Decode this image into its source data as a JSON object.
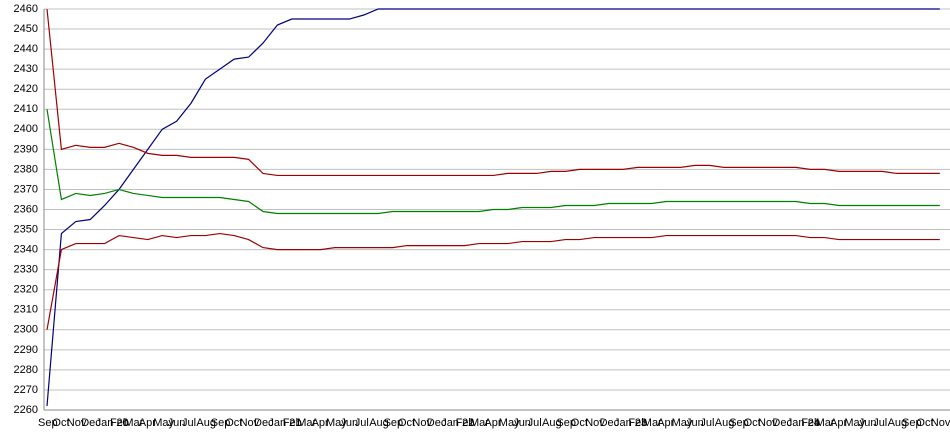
{
  "chart_data": {
    "type": "line",
    "categories": [
      "Sep",
      "Oct",
      "Nov",
      "Dec",
      "Jan 20",
      "Feb",
      "Mar",
      "Apr",
      "May",
      "Jun",
      "Jul",
      "Aug",
      "Sep",
      "Oct",
      "Nov",
      "Dec",
      "Jan 21",
      "Feb",
      "Mar",
      "Apr",
      "May",
      "Jun",
      "Jul",
      "Aug",
      "Sep",
      "Oct",
      "Nov",
      "Dec",
      "Jan 22",
      "Feb",
      "Mar",
      "Apr",
      "May",
      "Jun",
      "Jul",
      "Aug",
      "Sep",
      "Oct",
      "Nov",
      "Dec",
      "Jan 23",
      "Feb",
      "Mar",
      "Apr",
      "May",
      "Jun",
      "Jul",
      "Aug",
      "Sep",
      "Oct",
      "Nov",
      "Dec",
      "Jan 24",
      "Feb",
      "Mar",
      "Apr",
      "May",
      "Jun",
      "Jul",
      "Aug",
      "Sep",
      "Oct",
      "Nov"
    ],
    "series": [
      {
        "color": "#000080",
        "values": [
          2262,
          2348,
          2354,
          2355,
          2362,
          2370,
          2380,
          2390,
          2400,
          2404,
          2413,
          2425,
          2430,
          2435,
          2436,
          2443,
          2452,
          2455,
          2455,
          2455,
          2455,
          2455,
          2457,
          2460,
          2460,
          2460,
          2460,
          2460,
          2460,
          2460,
          2460,
          2460,
          2460,
          2460,
          2460,
          2460,
          2460,
          2460,
          2460,
          2460,
          2460,
          2460,
          2460,
          2460,
          2460,
          2460,
          2460,
          2460,
          2460,
          2460,
          2460,
          2460,
          2460,
          2460,
          2460,
          2460,
          2460,
          2460,
          2460,
          2460,
          2460,
          2460,
          2460
        ]
      },
      {
        "color": "#a00000",
        "values": [
          2460,
          2390,
          2392,
          2391,
          2391,
          2393,
          2391,
          2388,
          2387,
          2387,
          2386,
          2386,
          2386,
          2386,
          2385,
          2378,
          2377,
          2377,
          2377,
          2377,
          2377,
          2377,
          2377,
          2377,
          2377,
          2377,
          2377,
          2377,
          2377,
          2377,
          2377,
          2377,
          2378,
          2378,
          2378,
          2379,
          2379,
          2380,
          2380,
          2380,
          2380,
          2381,
          2381,
          2381,
          2381,
          2382,
          2382,
          2381,
          2381,
          2381,
          2381,
          2381,
          2381,
          2380,
          2380,
          2379,
          2379,
          2379,
          2379,
          2378,
          2378,
          2378,
          2378
        ]
      },
      {
        "color": "#008000",
        "values": [
          2410,
          2365,
          2368,
          2367,
          2368,
          2370,
          2368,
          2367,
          2366,
          2366,
          2366,
          2366,
          2366,
          2365,
          2364,
          2359,
          2358,
          2358,
          2358,
          2358,
          2358,
          2358,
          2358,
          2358,
          2359,
          2359,
          2359,
          2359,
          2359,
          2359,
          2359,
          2360,
          2360,
          2361,
          2361,
          2361,
          2362,
          2362,
          2362,
          2363,
          2363,
          2363,
          2363,
          2364,
          2364,
          2364,
          2364,
          2364,
          2364,
          2364,
          2364,
          2364,
          2364,
          2363,
          2363,
          2362,
          2362,
          2362,
          2362,
          2362,
          2362,
          2362,
          2362
        ]
      },
      {
        "color": "#a00000",
        "values": [
          2300,
          2340,
          2343,
          2343,
          2343,
          2347,
          2346,
          2345,
          2347,
          2346,
          2347,
          2347,
          2348,
          2347,
          2345,
          2341,
          2340,
          2340,
          2340,
          2340,
          2341,
          2341,
          2341,
          2341,
          2341,
          2342,
          2342,
          2342,
          2342,
          2342,
          2343,
          2343,
          2343,
          2344,
          2344,
          2344,
          2345,
          2345,
          2346,
          2346,
          2346,
          2346,
          2346,
          2347,
          2347,
          2347,
          2347,
          2347,
          2347,
          2347,
          2347,
          2347,
          2347,
          2346,
          2346,
          2345,
          2345,
          2345,
          2345,
          2345,
          2345,
          2345,
          2345
        ]
      }
    ],
    "ylim": [
      2260,
      2460
    ],
    "yticks": [
      2260,
      2270,
      2280,
      2290,
      2300,
      2310,
      2320,
      2330,
      2340,
      2350,
      2360,
      2370,
      2380,
      2390,
      2400,
      2410,
      2420,
      2430,
      2440,
      2450,
      2460
    ],
    "grid": true
  }
}
